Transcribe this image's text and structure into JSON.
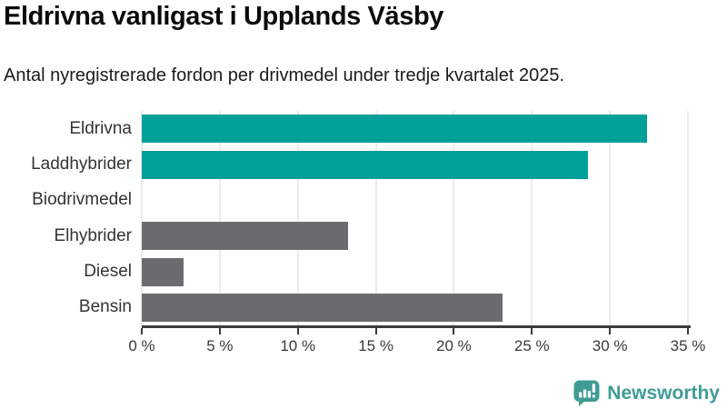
{
  "header": {
    "title": "Eldrivna vanligast i Upplands Väsby",
    "subtitle": "Antal nyregistrerade fordon per drivmedel under tredje kvartalet 2025."
  },
  "chart_data": {
    "type": "bar",
    "orientation": "horizontal",
    "title": "Eldrivna vanligast i Upplands Väsby",
    "subtitle": "Antal nyregistrerade fordon per drivmedel under tredje kvartalet 2025.",
    "categories": [
      "Eldrivna",
      "Laddhybrider",
      "Biodrivmedel",
      "Elhybrider",
      "Diesel",
      "Bensin"
    ],
    "values": [
      32.4,
      28.6,
      0,
      13.2,
      2.7,
      23.1
    ],
    "unit": "%",
    "bar_colors": [
      "#00A09A",
      "#00A09A",
      "#6C6C70",
      "#6C6C70",
      "#6C6C70",
      "#6C6C70"
    ],
    "xlim": [
      0,
      35
    ],
    "x_ticks": [
      0,
      5,
      10,
      15,
      20,
      25,
      30,
      35
    ],
    "x_tick_labels": [
      "0 %",
      "5 %",
      "10 %",
      "15 %",
      "20 %",
      "25 %",
      "30 %",
      "35 %"
    ],
    "grid": "vertical",
    "legend": "none"
  },
  "colors": {
    "bar_highlight": "#00A09A",
    "bar_default": "#6C6C70",
    "axis": "#3B3B3B",
    "gridline": "#EBEBEB",
    "brand_teal": "#3F9C95"
  },
  "footer": {
    "brand": "Newsworthy"
  }
}
